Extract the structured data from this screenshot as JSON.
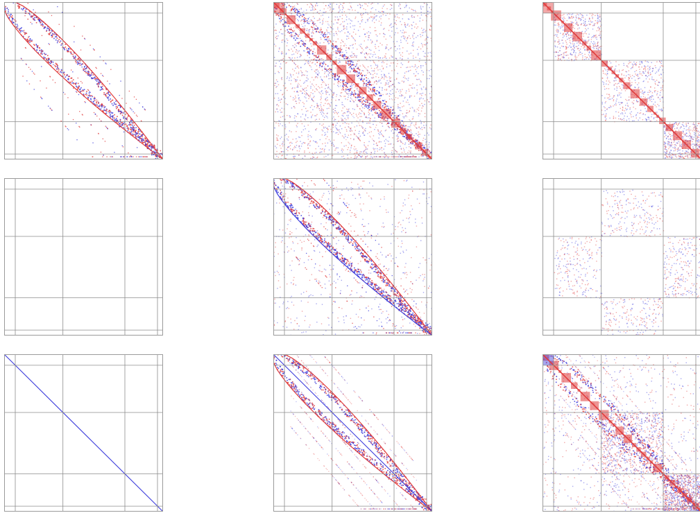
{
  "figure": {
    "rows": 3,
    "cols": 3,
    "colors": {
      "positive": "#e03c3c",
      "negative": "#3c3cdc",
      "grid": "#8c8c8c",
      "frame": "#9a9a9a",
      "background": "#ffffff"
    },
    "block_boundaries": [
      0.07,
      0.37,
      0.76,
      0.965
    ],
    "panels": [
      {
        "pattern": "hull-sparse"
      },
      {
        "pattern": "blockdiag-dense"
      },
      {
        "pattern": "blockdiag-clustered"
      },
      {
        "pattern": "empty"
      },
      {
        "pattern": "hull-sparse-dense"
      },
      {
        "pattern": "offblock-scattered"
      },
      {
        "pattern": "identity-diagonal"
      },
      {
        "pattern": "hull-diagonal"
      },
      {
        "pattern": "blockdiag-mixed"
      }
    ]
  }
}
